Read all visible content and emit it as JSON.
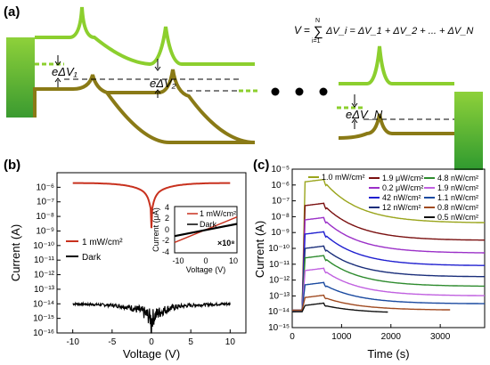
{
  "colors": {
    "light_green": "#8ccf2e",
    "dark_olive": "#8a7a16",
    "red": "#c8311e",
    "black": "#000000"
  },
  "panel_a": {
    "label": "(a)",
    "equation": "V = Σ ΔV_i = ΔV_1 + ΔV_2 + ... + ΔV_N",
    "eq_V": "V",
    "eq_sum": "∑",
    "eq_sum_top": "N",
    "eq_sum_bot": "i=1",
    "eq_rhs": "ΔV_i = ΔV_1 + ΔV_2 + ... + ΔV_N",
    "labels": {
      "v1": "eΔV₁",
      "v2": "eΔV₂",
      "vn": "eΔV_N"
    }
  },
  "panel_b": {
    "label": "(b)",
    "legend": [
      "1 mW/cm²",
      "Dark"
    ],
    "inset": {
      "legend": [
        "1 mW/cm²",
        "Dark"
      ],
      "multiplier": "×10⁸"
    }
  },
  "panel_c": {
    "label": "(c)",
    "legend": [
      "1.0 mW/cm²",
      "1.9 μW/cm²",
      "4.8 nW/cm²",
      "0.2 μW/cm²",
      "1.9 nW/cm²",
      "42 nW/cm²",
      "1.1 nW/cm²",
      "12 nW/cm²",
      "0.8 nW/cm²",
      "0.5 nW/cm²"
    ]
  },
  "chart_data": [
    {
      "type": "line",
      "panel": "(b)",
      "xlabel": "Voltage (V)",
      "ylabel": "Current (A)",
      "xlim": [
        -12,
        12
      ],
      "ylim_log10": [
        -16,
        -5
      ],
      "y_scale": "log",
      "x_ticks": [
        -10,
        -5,
        0,
        5,
        10
      ],
      "y_ticks_labels": [
        "10⁻¹⁶",
        "10⁻¹⁵",
        "10⁻¹⁴",
        "10⁻¹³",
        "10⁻¹²",
        "10⁻¹¹",
        "10⁻¹⁰",
        "10⁻⁹",
        "10⁻⁸",
        "10⁻⁷",
        "10⁻⁶"
      ],
      "series": [
        {
          "name": "1 mW/cm²",
          "color": "#c8311e",
          "x": [
            -10,
            -5,
            -2,
            -1,
            -0.3,
            0,
            0.3,
            1,
            2,
            5,
            10
          ],
          "y_log10": [
            -5.7,
            -5.85,
            -6.1,
            -6.4,
            -7.2,
            -8.8,
            -7.2,
            -6.4,
            -6.1,
            -5.85,
            -5.7
          ]
        },
        {
          "name": "Dark",
          "color": "#000000",
          "x": [
            -10,
            -5,
            -2,
            -1,
            -0.3,
            0,
            0.3,
            1,
            2,
            5,
            10
          ],
          "y_log10": [
            -13.9,
            -14.1,
            -14.4,
            -14.6,
            -15.0,
            -16.0,
            -15.0,
            -14.7,
            -14.5,
            -14.3,
            -14.1
          ]
        }
      ],
      "legend_placement": "left"
    },
    {
      "type": "line",
      "panel": "(b) inset",
      "xlabel": "Voltage (V)",
      "ylabel": "Current (μA)",
      "xlim": [
        -10,
        10
      ],
      "ylim": [
        -4,
        4
      ],
      "x_ticks": [
        -10,
        0,
        10
      ],
      "y_ticks": [
        -4,
        -2,
        0,
        2,
        4
      ],
      "series": [
        {
          "name": "1 mW/cm²",
          "color": "#c8311e",
          "x": [
            -10,
            10
          ],
          "y": [
            -2.2,
            2.2
          ]
        },
        {
          "name": "Dark",
          "color": "#000000",
          "x": [
            -10,
            10
          ],
          "y": [
            -1.1,
            1.0
          ]
        }
      ]
    },
    {
      "type": "line",
      "panel": "(c)",
      "xlabel": "Time (s)",
      "ylabel": "Current (A)",
      "xlim": [
        0,
        3900
      ],
      "x_ticks": [
        0,
        1000,
        2000,
        3000
      ],
      "ylim_log10": [
        -15,
        -5
      ],
      "y_scale": "log",
      "y_ticks_labels": [
        "10⁻¹⁵",
        "10⁻¹⁴",
        "10⁻¹³",
        "10⁻¹²",
        "10⁻¹¹",
        "10⁻¹⁰",
        "10⁻⁹",
        "10⁻⁸",
        "10⁻⁷",
        "10⁻⁶",
        "10⁻⁵"
      ],
      "series": [
        {
          "name": "1.0 mW/cm²",
          "color": "#9aa51c",
          "base": -13.9,
          "peak": -5.8,
          "end": -8.4
        },
        {
          "name": "1.9 μW/cm²",
          "color": "#7a1010",
          "base": -13.9,
          "peak": -7.3,
          "end": -9.5
        },
        {
          "name": "0.2 μW/cm²",
          "color": "#9b30c8",
          "base": -13.9,
          "peak": -8.2,
          "end": -10.3
        },
        {
          "name": "42 nW/cm²",
          "color": "#2020d0",
          "base": -13.9,
          "peak": -9.1,
          "end": -11.1
        },
        {
          "name": "12 nW/cm²",
          "color": "#1a2e7a",
          "base": -13.9,
          "peak": -10.0,
          "end": -11.8
        },
        {
          "name": "4.8 nW/cm²",
          "color": "#2e8b2e",
          "base": -13.9,
          "peak": -10.6,
          "end": -12.4
        },
        {
          "name": "1.9 nW/cm²",
          "color": "#c060e0",
          "base": -13.9,
          "peak": -11.4,
          "end": -13.0
        },
        {
          "name": "1.1 nW/cm²",
          "color": "#1a4aa0",
          "base": -13.9,
          "peak": -12.3,
          "end": -13.5
        },
        {
          "name": "0.8 nW/cm²",
          "color": "#a04a20",
          "base": -13.9,
          "peak": -13.1,
          "end": -13.9
        },
        {
          "name": "0.5 nW/cm²",
          "color": "#111111",
          "base": -14.0,
          "peak": -13.6,
          "end": -14.1
        }
      ],
      "light_on_s": 200,
      "light_off_s": 650
    }
  ]
}
